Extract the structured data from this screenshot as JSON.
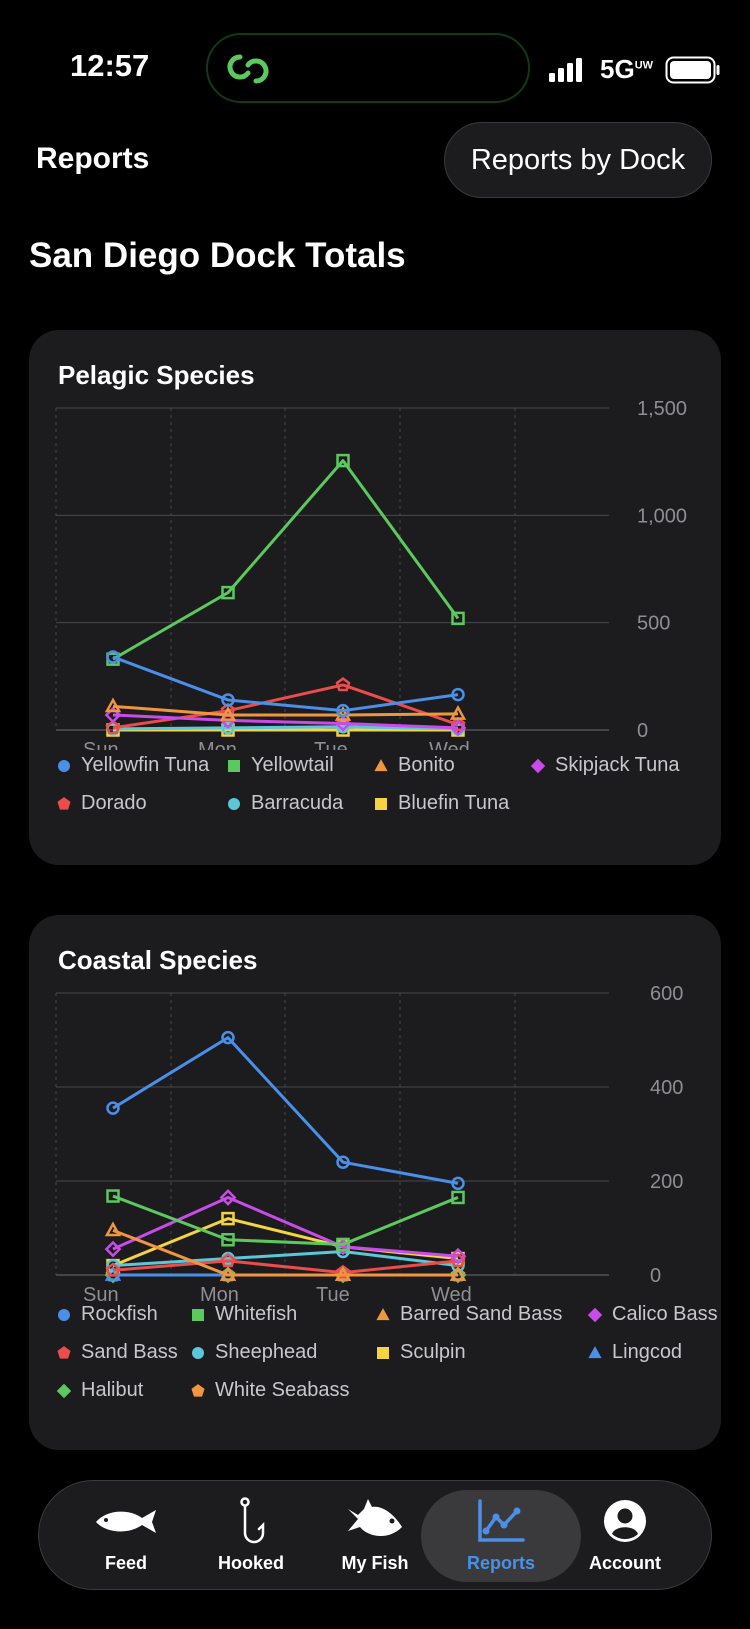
{
  "status_bar": {
    "time": "12:57",
    "network": "5G",
    "network_suffix": "UW"
  },
  "header": {
    "title": "Reports",
    "dock_button": "Reports by Dock"
  },
  "page_title": "San Diego Dock Totals",
  "colors": {
    "blue": "#4a90e8",
    "green": "#5cc95e",
    "orange": "#f0963f",
    "purple": "#c94bea",
    "red": "#ea4d4a",
    "cyan": "#5ac8d8",
    "yellow": "#f5d442"
  },
  "charts": [
    {
      "title": "Pelagic Species",
      "chart_data": {
        "type": "line",
        "categories": [
          "Sun",
          "Mon",
          "Tue",
          "Wed"
        ],
        "ylim": [
          0,
          1500
        ],
        "yticks": [
          "1,500",
          "1,000",
          "500",
          "0"
        ],
        "grid": true,
        "legend_placement": "bottom",
        "series": [
          {
            "name": "Yellowfin Tuna",
            "color": "#4a90e8",
            "marker": "circle",
            "values": [
              340,
              140,
              90,
              165
            ]
          },
          {
            "name": "Yellowtail",
            "color": "#5cc95e",
            "marker": "square",
            "values": [
              330,
              640,
              1255,
              520
            ]
          },
          {
            "name": "Bonito",
            "color": "#f0963f",
            "marker": "triangle",
            "values": [
              110,
              70,
              70,
              75
            ]
          },
          {
            "name": "Skipjack Tuna",
            "color": "#c94bea",
            "marker": "diamond",
            "values": [
              70,
              45,
              30,
              10
            ]
          },
          {
            "name": "Dorado",
            "color": "#ea4d4a",
            "marker": "pentagon",
            "values": [
              10,
              90,
              210,
              25
            ]
          },
          {
            "name": "Barracuda",
            "color": "#5ac8d8",
            "marker": "circle",
            "values": [
              5,
              10,
              15,
              5
            ]
          },
          {
            "name": "Bluefin Tuna",
            "color": "#f5d442",
            "marker": "square",
            "values": [
              0,
              0,
              0,
              0
            ]
          }
        ]
      }
    },
    {
      "title": "Coastal Species",
      "chart_data": {
        "type": "line",
        "categories": [
          "Sun",
          "Mon",
          "Tue",
          "Wed"
        ],
        "ylim": [
          0,
          600
        ],
        "yticks": [
          "600",
          "400",
          "200",
          "0"
        ],
        "grid": true,
        "legend_placement": "bottom",
        "series": [
          {
            "name": "Rockfish",
            "color": "#4a90e8",
            "marker": "circle",
            "values": [
              355,
              505,
              240,
              195
            ]
          },
          {
            "name": "Whitefish",
            "color": "#5cc95e",
            "marker": "square",
            "values": [
              168,
              75,
              65,
              165
            ]
          },
          {
            "name": "Barred Sand Bass",
            "color": "#f0963f",
            "marker": "triangle",
            "values": [
              95,
              0,
              0,
              0
            ]
          },
          {
            "name": "Calico Bass",
            "color": "#c94bea",
            "marker": "diamond",
            "values": [
              55,
              165,
              60,
              40
            ]
          },
          {
            "name": "Sand Bass",
            "color": "#ea4d4a",
            "marker": "pentagon",
            "values": [
              10,
              30,
              5,
              30
            ]
          },
          {
            "name": "Sheephead",
            "color": "#5ac8d8",
            "marker": "circle",
            "values": [
              20,
              35,
              50,
              20
            ]
          },
          {
            "name": "Sculpin",
            "color": "#f5d442",
            "marker": "square",
            "values": [
              20,
              120,
              60,
              35
            ]
          },
          {
            "name": "Lingcod",
            "color": "#4a90e8",
            "marker": "triangle",
            "values": [
              0,
              0,
              0,
              0
            ]
          },
          {
            "name": "Halibut",
            "color": "#5cc95e",
            "marker": "diamond",
            "values": [
              0,
              0,
              0,
              0
            ]
          },
          {
            "name": "White Seabass",
            "color": "#f0963f",
            "marker": "pentagon",
            "values": [
              0,
              0,
              0,
              0
            ]
          }
        ]
      }
    }
  ],
  "tabbar": {
    "tabs": [
      {
        "label": "Feed",
        "icon": "fish-icon"
      },
      {
        "label": "Hooked",
        "icon": "hook-icon"
      },
      {
        "label": "My Fish",
        "icon": "my-fish-icon"
      },
      {
        "label": "Reports",
        "icon": "chart-icon",
        "active": true
      },
      {
        "label": "Account",
        "icon": "account-icon"
      }
    ]
  }
}
